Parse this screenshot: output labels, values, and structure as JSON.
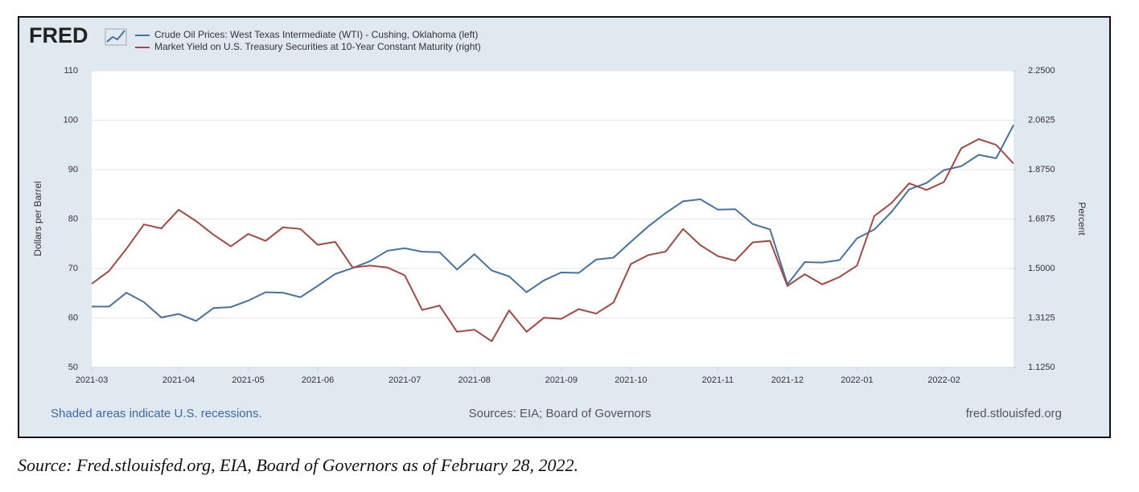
{
  "chart_data": {
    "type": "line",
    "logo": "FRED",
    "categories": [
      "2021-03",
      null,
      null,
      null,
      null,
      "2021-04",
      null,
      null,
      null,
      "2021-05",
      null,
      null,
      null,
      "2021-06",
      null,
      null,
      null,
      null,
      "2021-07",
      null,
      null,
      null,
      "2021-08",
      null,
      null,
      null,
      null,
      "2021-09",
      null,
      null,
      null,
      "2021-10",
      null,
      null,
      null,
      null,
      "2021-11",
      null,
      null,
      null,
      "2021-12",
      null,
      null,
      null,
      "2022-01",
      null,
      null,
      null,
      null,
      "2022-02",
      null,
      null,
      null,
      null
    ],
    "series": [
      {
        "name": "Crude Oil Prices: West Texas Intermediate (WTI) - Cushing, Oklahoma (left)",
        "color": "#4572a7",
        "axis": "y",
        "values": [
          62.3,
          62.3,
          65.1,
          63.2,
          60.1,
          60.8,
          59.4,
          62.0,
          62.2,
          63.5,
          65.2,
          65.1,
          64.2,
          66.5,
          68.9,
          70.1,
          71.5,
          73.6,
          74.1,
          73.4,
          73.3,
          69.8,
          72.9,
          69.6,
          68.4,
          65.2,
          67.6,
          69.2,
          69.1,
          71.8,
          72.2,
          75.4,
          78.5,
          81.2,
          83.6,
          84.0,
          81.9,
          82.0,
          79.0,
          77.9,
          66.8,
          71.3,
          71.2,
          71.7,
          76.1,
          77.9,
          81.5,
          86.0,
          87.3,
          89.9,
          90.7,
          93.0,
          92.3,
          99.0
        ]
      },
      {
        "name": "Market Yield on U.S. Treasury Securities at 10-Year Constant Maturity (right)",
        "color": "#aa4643",
        "axis": "y2",
        "values": [
          1.442,
          1.491,
          1.575,
          1.667,
          1.652,
          1.723,
          1.68,
          1.628,
          1.584,
          1.631,
          1.605,
          1.656,
          1.65,
          1.59,
          1.601,
          1.504,
          1.511,
          1.504,
          1.474,
          1.343,
          1.359,
          1.26,
          1.268,
          1.224,
          1.341,
          1.26,
          1.313,
          1.309,
          1.346,
          1.329,
          1.371,
          1.517,
          1.551,
          1.564,
          1.65,
          1.588,
          1.547,
          1.53,
          1.599,
          1.605,
          1.434,
          1.478,
          1.44,
          1.468,
          1.511,
          1.699,
          1.749,
          1.823,
          1.798,
          1.828,
          1.956,
          1.991,
          1.969,
          1.898
        ]
      }
    ],
    "ylabel": "Dollars per Barrel",
    "y2label": "Percent",
    "ylim": [
      50,
      110
    ],
    "yticks": [
      50,
      60,
      70,
      80,
      90,
      100,
      110
    ],
    "y2lim": [
      1.125,
      2.25
    ],
    "y2ticks": [
      {
        "value": 1.125,
        "label": "1.1250"
      },
      {
        "value": 1.3125,
        "label": "1.3125"
      },
      {
        "value": 1.5,
        "label": "1.5000"
      },
      {
        "value": 1.6875,
        "label": "1.6875"
      },
      {
        "value": 1.875,
        "label": "1.8750"
      },
      {
        "value": 2.0625,
        "label": "2.0625"
      },
      {
        "value": 2.25,
        "label": "2.2500"
      }
    ],
    "grid": true,
    "footer": {
      "left": "Shaded areas indicate U.S. recessions.",
      "center": "Sources: EIA; Board of Governors",
      "right": "fred.stlouisfed.org"
    }
  },
  "caption": "Source: Fred.stlouisfed.org, EIA, Board of Governors as of February 28, 2022."
}
